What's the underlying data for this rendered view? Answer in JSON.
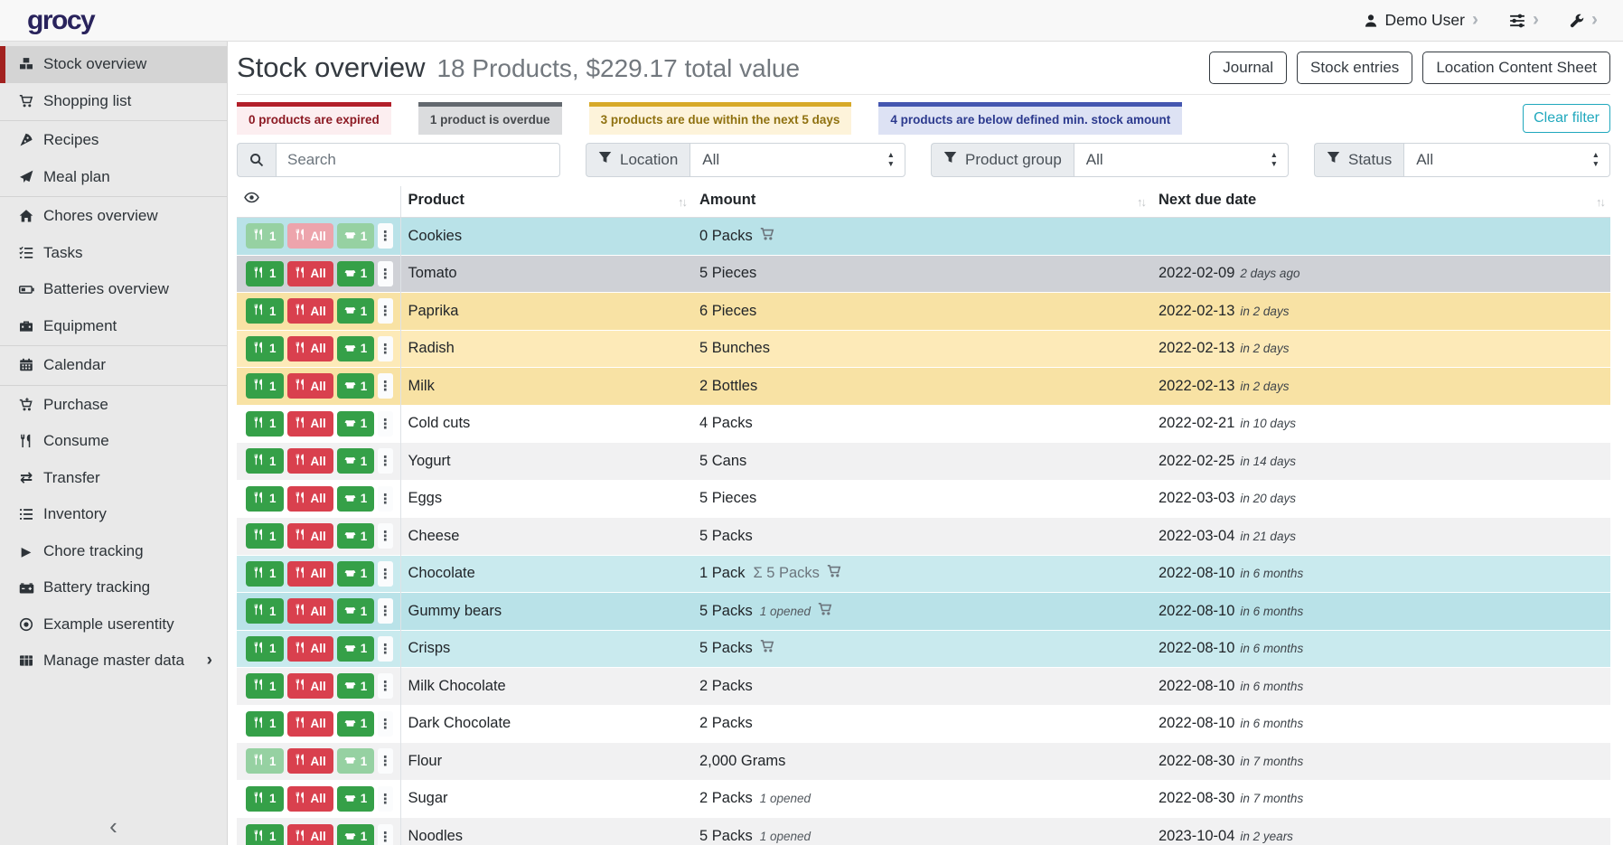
{
  "navbar": {
    "logo": "grocy",
    "user_label": "Demo User",
    "user_icon": "user",
    "menu_icons": [
      "sliders",
      "wrench"
    ],
    "chevron": "›"
  },
  "sidebar": {
    "collapse_icon": "‹",
    "items": [
      {
        "label": "Stock overview",
        "icon": "boxes",
        "active": true
      },
      {
        "label": "Shopping list",
        "icon": "cart",
        "divider_after": true
      },
      {
        "label": "Recipes",
        "icon": "pizza"
      },
      {
        "label": "Meal plan",
        "icon": "paper-plane",
        "divider_after": true
      },
      {
        "label": "Chores overview",
        "icon": "home"
      },
      {
        "label": "Tasks",
        "icon": "tasks"
      },
      {
        "label": "Batteries overview",
        "icon": "battery"
      },
      {
        "label": "Equipment",
        "icon": "toolbox",
        "divider_after": true
      },
      {
        "label": "Calendar",
        "icon": "calendar",
        "divider_after": true
      },
      {
        "label": "Purchase",
        "icon": "cart-plus"
      },
      {
        "label": "Consume",
        "icon": "utensils"
      },
      {
        "label": "Transfer",
        "icon": "exchange"
      },
      {
        "label": "Inventory",
        "icon": "list"
      },
      {
        "label": "Chore tracking",
        "icon": "play"
      },
      {
        "label": "Battery tracking",
        "icon": "car-battery"
      },
      {
        "label": "Example userentity",
        "icon": "dot-circle"
      },
      {
        "label": "Manage master data",
        "icon": "table",
        "has_chevron": true,
        "chevron": "›"
      }
    ]
  },
  "page": {
    "title": "Stock overview",
    "subtitle": "18 Products, $229.17 total value",
    "actions": [
      "Journal",
      "Stock entries",
      "Location Content Sheet"
    ]
  },
  "summary_badges": [
    {
      "text": "0 products are expired",
      "type": "danger"
    },
    {
      "text": "1 product is overdue",
      "type": "secondary"
    },
    {
      "text": "3 products are due within the next 5 days",
      "type": "warning"
    },
    {
      "text": "4 products are below defined min. stock amount",
      "type": "primary"
    }
  ],
  "clear_filter_label": "Clear filter",
  "filters": {
    "search_placeholder": "Search",
    "search_icon": "search",
    "groups": [
      {
        "label": "Location",
        "value": "All",
        "icon": "filter"
      },
      {
        "label": "Product group",
        "value": "All",
        "icon": "filter"
      },
      {
        "label": "Status",
        "value": "All",
        "icon": "filter"
      }
    ]
  },
  "table": {
    "eye_icon": "eye",
    "sort_icon": "↑↓",
    "columns": [
      "Product",
      "Amount",
      "Next due date"
    ],
    "buttons": {
      "consume_one": "1",
      "consume_all": "All",
      "open_one": "1"
    },
    "rows": [
      {
        "product": "Cookies",
        "amount": "0 Packs",
        "cart": true,
        "due": "",
        "rel": "",
        "tone": "info",
        "disabled": "all"
      },
      {
        "product": "Tomato",
        "amount": "5 Pieces",
        "due": "2022-02-09",
        "rel": "2 days ago",
        "tone": "secondary"
      },
      {
        "product": "Paprika",
        "amount": "6 Pieces",
        "due": "2022-02-13",
        "rel": "in 2 days",
        "tone": "warning"
      },
      {
        "product": "Radish",
        "amount": "5 Bunches",
        "due": "2022-02-13",
        "rel": "in 2 days",
        "tone": "warning"
      },
      {
        "product": "Milk",
        "amount": "2 Bottles",
        "due": "2022-02-13",
        "rel": "in 2 days",
        "tone": "warning"
      },
      {
        "product": "Cold cuts",
        "amount": "4 Packs",
        "due": "2022-02-21",
        "rel": "in 10 days"
      },
      {
        "product": "Yogurt",
        "amount": "5 Cans",
        "due": "2022-02-25",
        "rel": "in 14 days"
      },
      {
        "product": "Eggs",
        "amount": "5 Pieces",
        "due": "2022-03-03",
        "rel": "in 20 days"
      },
      {
        "product": "Cheese",
        "amount": "5 Packs",
        "due": "2022-03-04",
        "rel": "in 21 days"
      },
      {
        "product": "Chocolate",
        "amount": "1 Pack",
        "sum": "Σ 5 Packs",
        "cart": true,
        "due": "2022-08-10",
        "rel": "in 6 months",
        "tone": "info"
      },
      {
        "product": "Gummy bears",
        "amount": "5 Packs",
        "opened": "1 opened",
        "cart": true,
        "due": "2022-08-10",
        "rel": "in 6 months",
        "tone": "info"
      },
      {
        "product": "Crisps",
        "amount": "5 Packs",
        "cart": true,
        "due": "2022-08-10",
        "rel": "in 6 months",
        "tone": "info"
      },
      {
        "product": "Milk Chocolate",
        "amount": "2 Packs",
        "due": "2022-08-10",
        "rel": "in 6 months"
      },
      {
        "product": "Dark Chocolate",
        "amount": "2 Packs",
        "due": "2022-08-10",
        "rel": "in 6 months"
      },
      {
        "product": "Flour",
        "amount": "2,000 Grams",
        "due": "2022-08-30",
        "rel": "in 7 months",
        "disabled": "partial"
      },
      {
        "product": "Sugar",
        "amount": "2 Packs",
        "opened": "1 opened",
        "due": "2022-08-30",
        "rel": "in 7 months"
      },
      {
        "product": "Noodles",
        "amount": "5 Packs",
        "opened": "1 opened",
        "due": "2023-10-04",
        "rel": "in 2 years"
      }
    ]
  },
  "colors": {
    "accent_red": "#a2211f",
    "logo": "#29235c",
    "success": "#35a048",
    "danger": "#d9404e",
    "teal": "#20a8bd",
    "info_row": "#c3e6eb",
    "warning_row": "#fbe5ab",
    "secondary_row": "#cfd1d6"
  }
}
